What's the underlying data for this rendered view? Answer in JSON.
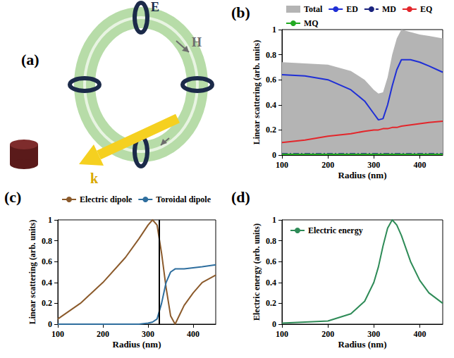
{
  "diagram": {
    "label": "(a)",
    "field_labels": {
      "electric": "E",
      "magnetic": "H",
      "wavevector": "k"
    }
  },
  "chart_data": [
    {
      "type": "line",
      "title": "(b)",
      "x_label": "Radius (nm)",
      "y_label": "Linear scattering (arb. units)",
      "x": [
        100,
        150,
        200,
        250,
        280,
        300,
        310,
        320,
        330,
        340,
        350,
        360,
        380,
        400,
        420,
        450
      ],
      "xlim": [
        100,
        450
      ],
      "xticks": [
        100,
        200,
        300,
        400
      ],
      "ylim": [
        0,
        1
      ],
      "yticks": [
        0,
        0.2,
        0.4,
        0.6,
        0.8,
        1
      ],
      "grid": false,
      "legend": "top",
      "series": [
        {
          "name": "Total",
          "type": "area",
          "color": "#b4b4b4",
          "values": [
            0.74,
            0.73,
            0.72,
            0.67,
            0.6,
            0.52,
            0.49,
            0.5,
            0.62,
            0.8,
            0.93,
            1.0,
            0.98,
            0.96,
            0.95,
            0.93
          ]
        },
        {
          "name": "ED",
          "type": "line",
          "color": "#1f2fd6",
          "line_style": "solid",
          "values": [
            0.64,
            0.63,
            0.6,
            0.52,
            0.43,
            0.33,
            0.28,
            0.29,
            0.4,
            0.55,
            0.68,
            0.76,
            0.76,
            0.74,
            0.71,
            0.66
          ]
        },
        {
          "name": "MD",
          "type": "line",
          "color": "#1a237e",
          "line_style": "dashdot",
          "values": [
            0.01,
            0.01,
            0.01,
            0.01,
            0.01,
            0.01,
            0.01,
            0.01,
            0.01,
            0.01,
            0.01,
            0.01,
            0.01,
            0.01,
            0.01,
            0.01
          ]
        },
        {
          "name": "EQ",
          "type": "line",
          "color": "#e3262b",
          "line_style": "solid",
          "values": [
            0.1,
            0.12,
            0.15,
            0.17,
            0.19,
            0.2,
            0.2,
            0.21,
            0.21,
            0.22,
            0.22,
            0.23,
            0.24,
            0.25,
            0.26,
            0.27
          ]
        },
        {
          "name": "MQ",
          "type": "line",
          "color": "#22aa22",
          "line_style": "solid",
          "values": [
            0.005,
            0.005,
            0.005,
            0.005,
            0.005,
            0.005,
            0.005,
            0.005,
            0.005,
            0.005,
            0.005,
            0.005,
            0.005,
            0.005,
            0.005,
            0.005
          ]
        }
      ]
    },
    {
      "type": "line",
      "title": "(c)",
      "x_label": "Radius (nm)",
      "y_label": "Linear scattering (arb. units)",
      "x": [
        100,
        150,
        200,
        250,
        280,
        300,
        310,
        320,
        330,
        340,
        350,
        360,
        380,
        400,
        420,
        450
      ],
      "xlim": [
        100,
        450
      ],
      "xticks": [
        100,
        200,
        300,
        400
      ],
      "ylim": [
        0,
        1
      ],
      "yticks": [
        0,
        0.2,
        0.4,
        0.6,
        0.8,
        1
      ],
      "grid": false,
      "legend": "top",
      "vlines": [
        325
      ],
      "series": [
        {
          "name": "Electric dipole",
          "type": "line",
          "color": "#8b5a2b",
          "line_style": "solid",
          "values": [
            0.05,
            0.2,
            0.4,
            0.64,
            0.82,
            0.95,
            1.0,
            0.95,
            0.68,
            0.35,
            0.08,
            0.0,
            0.18,
            0.3,
            0.4,
            0.47
          ]
        },
        {
          "name": "Toroidal dipole",
          "type": "line",
          "color": "#2e6e9e",
          "line_style": "solid",
          "values": [
            0,
            0,
            0,
            0,
            0,
            0.01,
            0.02,
            0.05,
            0.2,
            0.4,
            0.5,
            0.53,
            0.53,
            0.54,
            0.55,
            0.57
          ]
        }
      ]
    },
    {
      "type": "line",
      "title": "(d)",
      "x_label": "Radius (nm)",
      "y_label": "Electric energy (arb. units)",
      "x": [
        100,
        150,
        200,
        250,
        280,
        300,
        310,
        320,
        330,
        340,
        350,
        360,
        380,
        400,
        420,
        450
      ],
      "xlim": [
        100,
        450
      ],
      "xticks": [
        100,
        200,
        300,
        400
      ],
      "ylim": [
        0,
        1
      ],
      "yticks": [
        0,
        0.2,
        0.4,
        0.6,
        0.8,
        1
      ],
      "grid": false,
      "legend": "upper left",
      "series": [
        {
          "name": "Electric energy",
          "type": "line",
          "color": "#2e8b57",
          "line_style": "solid",
          "values": [
            0.01,
            0.02,
            0.03,
            0.1,
            0.22,
            0.4,
            0.55,
            0.75,
            0.92,
            1.0,
            0.95,
            0.85,
            0.6,
            0.42,
            0.3,
            0.2
          ]
        }
      ]
    }
  ]
}
